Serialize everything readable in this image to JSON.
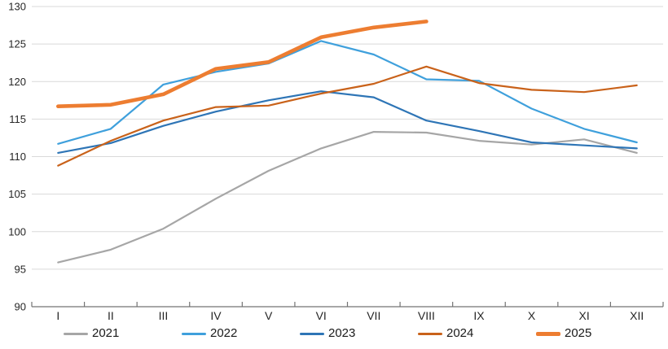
{
  "chart_data": {
    "type": "line",
    "title": "",
    "xlabel": "",
    "ylabel": "",
    "x_categories": [
      "I",
      "II",
      "III",
      "IV",
      "V",
      "VI",
      "VII",
      "VIII",
      "IX",
      "X",
      "XI",
      "XII"
    ],
    "ylim": [
      90,
      130
    ],
    "ytick_step": 5,
    "ytick_labels": [
      "90",
      "95",
      "100",
      "105",
      "110",
      "115",
      "120",
      "125",
      "130"
    ],
    "grid": "horizontal-only",
    "legend_position": "bottom",
    "series": [
      {
        "name": "2021",
        "color": "#A6A6A6",
        "width": 2.2,
        "values": [
          95.9,
          97.6,
          100.4,
          104.4,
          108.1,
          111.1,
          113.3,
          113.2,
          112.1,
          111.6,
          112.3,
          110.5
        ]
      },
      {
        "name": "2022",
        "color": "#3FA0DC",
        "width": 2.2,
        "values": [
          111.7,
          113.7,
          119.6,
          121.3,
          122.4,
          125.4,
          123.6,
          120.3,
          120.1,
          116.4,
          113.7,
          111.9
        ]
      },
      {
        "name": "2023",
        "color": "#2E75B6",
        "width": 2.2,
        "values": [
          110.5,
          111.8,
          114.1,
          116.0,
          117.5,
          118.7,
          117.9,
          114.8,
          113.4,
          111.9,
          111.5,
          111.1
        ]
      },
      {
        "name": "2024",
        "color": "#C9621A",
        "width": 2.2,
        "values": [
          108.8,
          112.1,
          114.8,
          116.6,
          116.8,
          118.4,
          119.7,
          122.0,
          119.8,
          118.9,
          118.6,
          119.5
        ]
      },
      {
        "name": "2025",
        "color": "#ED7D31",
        "width": 4.6,
        "values": [
          116.7,
          116.9,
          118.3,
          121.7,
          122.6,
          125.9,
          127.2,
          128.0
        ]
      }
    ]
  },
  "colors": {
    "background": "#FFFFFF",
    "gridline": "#D9D9D9",
    "axis_line": "#737373",
    "axis_text": "#262626"
  }
}
